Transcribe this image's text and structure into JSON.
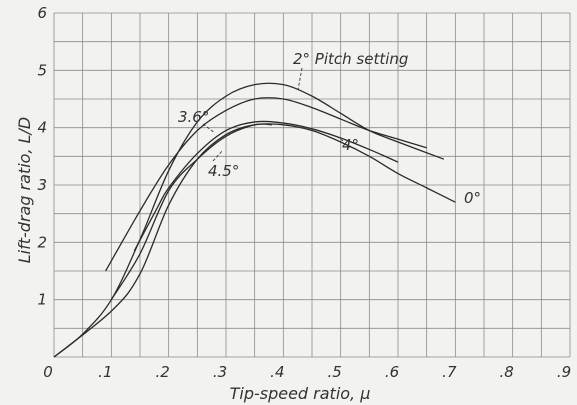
{
  "chart_data": {
    "type": "line",
    "xlabel": "Tip-speed ratio, μ",
    "ylabel": "Lift-drag ratio, L/D",
    "xlim": [
      0,
      0.9
    ],
    "ylim": [
      0,
      6
    ],
    "x_ticks": [
      "0",
      ".1",
      ".2",
      ".3",
      ".4",
      ".5",
      ".6",
      ".7",
      ".8",
      ".9"
    ],
    "y_ticks": [
      "1",
      "2",
      "3",
      "4",
      "5",
      "6"
    ],
    "grid": true,
    "series": [
      {
        "name": "2° Pitch setting",
        "x": [
          0,
          0.05,
          0.1,
          0.15,
          0.2,
          0.25,
          0.3,
          0.35,
          0.4,
          0.45,
          0.5,
          0.55,
          0.6,
          0.68
        ],
        "y": [
          0,
          0.4,
          1.0,
          2.05,
          3.25,
          4.1,
          4.55,
          4.75,
          4.75,
          4.55,
          4.25,
          3.95,
          3.75,
          3.45
        ]
      },
      {
        "name": "3.6°",
        "x": [
          0.09,
          0.15,
          0.2,
          0.25,
          0.3,
          0.35,
          0.4,
          0.45,
          0.5,
          0.55,
          0.6,
          0.65
        ],
        "y": [
          1.5,
          2.55,
          3.35,
          3.95,
          4.3,
          4.5,
          4.5,
          4.35,
          4.15,
          3.95,
          3.8,
          3.65
        ]
      },
      {
        "name": "4°",
        "x": [
          0.14,
          0.18,
          0.2,
          0.25,
          0.3,
          0.35,
          0.4,
          0.45,
          0.5,
          0.55,
          0.6
        ],
        "y": [
          1.85,
          2.6,
          2.95,
          3.55,
          3.95,
          4.1,
          4.08,
          3.98,
          3.82,
          3.62,
          3.4
        ]
      },
      {
        "name": "4.5°",
        "x": [
          0.1,
          0.15,
          0.2,
          0.25,
          0.3,
          0.35,
          0.38
        ],
        "y": [
          1.0,
          1.8,
          2.9,
          3.45,
          3.85,
          4.05,
          4.05
        ]
      },
      {
        "name": "0°",
        "x": [
          0,
          0.1,
          0.15,
          0.2,
          0.25,
          0.3,
          0.35,
          0.4,
          0.45,
          0.5,
          0.55,
          0.6,
          0.65,
          0.7
        ],
        "y": [
          0,
          0.8,
          1.45,
          2.65,
          3.45,
          3.88,
          4.05,
          4.05,
          3.95,
          3.75,
          3.5,
          3.2,
          2.95,
          2.7
        ]
      }
    ],
    "annotations": [
      "2° Pitch setting",
      "3.6°",
      "4°",
      "4.5°",
      "0°"
    ]
  }
}
